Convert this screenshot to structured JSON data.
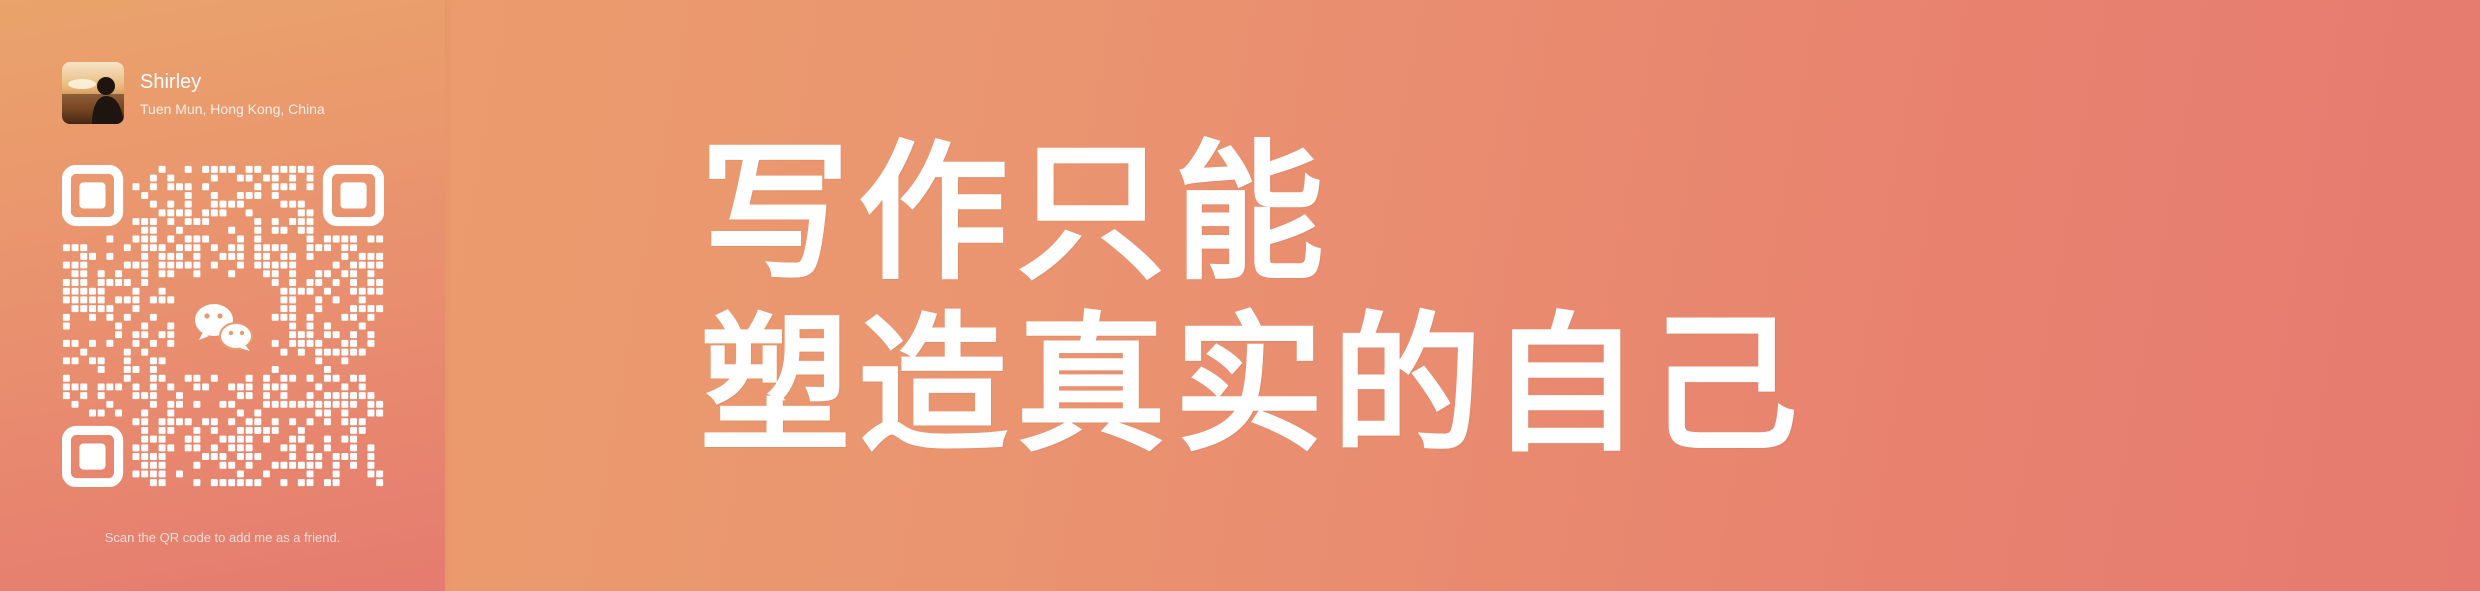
{
  "profile": {
    "name": "Shirley",
    "location": "Tuen Mun, Hong Kong, China"
  },
  "qr": {
    "caption": "Scan the QR code to add me as a friend.",
    "center_icon": "wechat-icon"
  },
  "headline": {
    "line1": "写作只能",
    "line2": "塑造真实的自己"
  },
  "colors": {
    "background_start": "#eca06a",
    "background_end": "#e67a70",
    "text": "#ffffff"
  }
}
